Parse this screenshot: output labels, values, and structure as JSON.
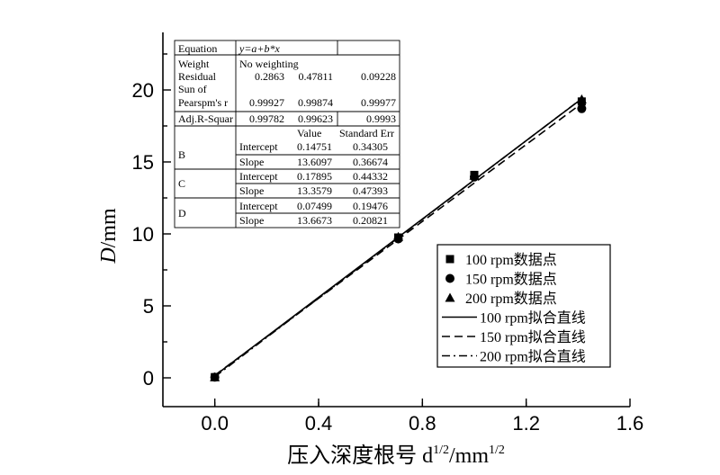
{
  "chart_data": {
    "type": "scatter",
    "xlabel": "压入深度根号 d",
    "xlabel_exp": "1/2",
    "xlabel_unit": "/mm",
    "xlabel_unit_exp": "1/2",
    "ylabel": "D",
    "ylabel_unit": "/mm",
    "xlim": [
      -0.2,
      1.6
    ],
    "ylim": [
      -2,
      24
    ],
    "x_ticks": [
      "0.0",
      "0.4",
      "0.8",
      "1.2",
      "1.6"
    ],
    "x_tick_values": [
      0.0,
      0.4,
      0.8,
      1.2,
      1.6
    ],
    "y_ticks": [
      "0",
      "5",
      "10",
      "15",
      "20"
    ],
    "y_tick_values": [
      0,
      5,
      10,
      15,
      20
    ],
    "grid": false,
    "legend_position": "bottom-right",
    "series": [
      {
        "name": "100 rpm数据点",
        "marker": "square",
        "x": [
          0,
          0.707,
          1.0,
          1.414
        ],
        "y": [
          0.05,
          9.75,
          14.1,
          19.2
        ]
      },
      {
        "name": "150 rpm数据点",
        "marker": "circle",
        "x": [
          0,
          0.707,
          1.0,
          1.414
        ],
        "y": [
          0.05,
          9.65,
          13.95,
          18.7
        ]
      },
      {
        "name": "200 rpm数据点",
        "marker": "triangle",
        "x": [
          0,
          0.707,
          1.0,
          1.414
        ],
        "y": [
          0.05,
          9.8,
          14.05,
          19.35
        ]
      }
    ],
    "fit_lines": [
      {
        "name": "100 rpm拟合直线",
        "dash": "solid",
        "intercept": 0.14751,
        "slope": 13.6097
      },
      {
        "name": "150 rpm拟合直线",
        "dash": "dash",
        "intercept": 0.17895,
        "slope": 13.3579
      },
      {
        "name": "200 rpm拟合直线",
        "dash": "dashdot",
        "intercept": 0.07499,
        "slope": 13.6673
      }
    ],
    "fit_x_range": [
      0,
      1.414
    ],
    "stats_table": {
      "equation_label": "Equation",
      "equation": "y=a+b*x",
      "weight_label": "Weight",
      "weight_value": "No weighting",
      "residual_label": "Residual",
      "residual_values": [
        "0.2863",
        "0.47811",
        "0.09228"
      ],
      "sumof_label": "Sun of",
      "pearson_label": "Pearspm's r",
      "pearson_values": [
        "0.99927",
        "0.99874",
        "0.99977"
      ],
      "adjr_label": "Adj.R-Squar",
      "adjr_values": [
        "0.99782",
        "0.99623",
        "0.9993"
      ],
      "value_header": "Value",
      "stderr_header": "Standard Err",
      "groups": [
        {
          "name": "B",
          "intercept_label": "Intercept",
          "intercept": "0.14751",
          "intercept_err": "0.34305",
          "slope_label": "Slope",
          "slope": "13.6097",
          "slope_err": "0.36674"
        },
        {
          "name": "C",
          "intercept_label": "Intercept",
          "intercept": "0.17895",
          "intercept_err": "0.44332",
          "slope_label": "Slope",
          "slope": "13.3579",
          "slope_err": "0.47393"
        },
        {
          "name": "D",
          "intercept_label": "Intercept",
          "intercept": "0.07499",
          "intercept_err": "0.19476",
          "slope_label": "Slope",
          "slope": "13.6673",
          "slope_err": "0.20821"
        }
      ]
    }
  }
}
